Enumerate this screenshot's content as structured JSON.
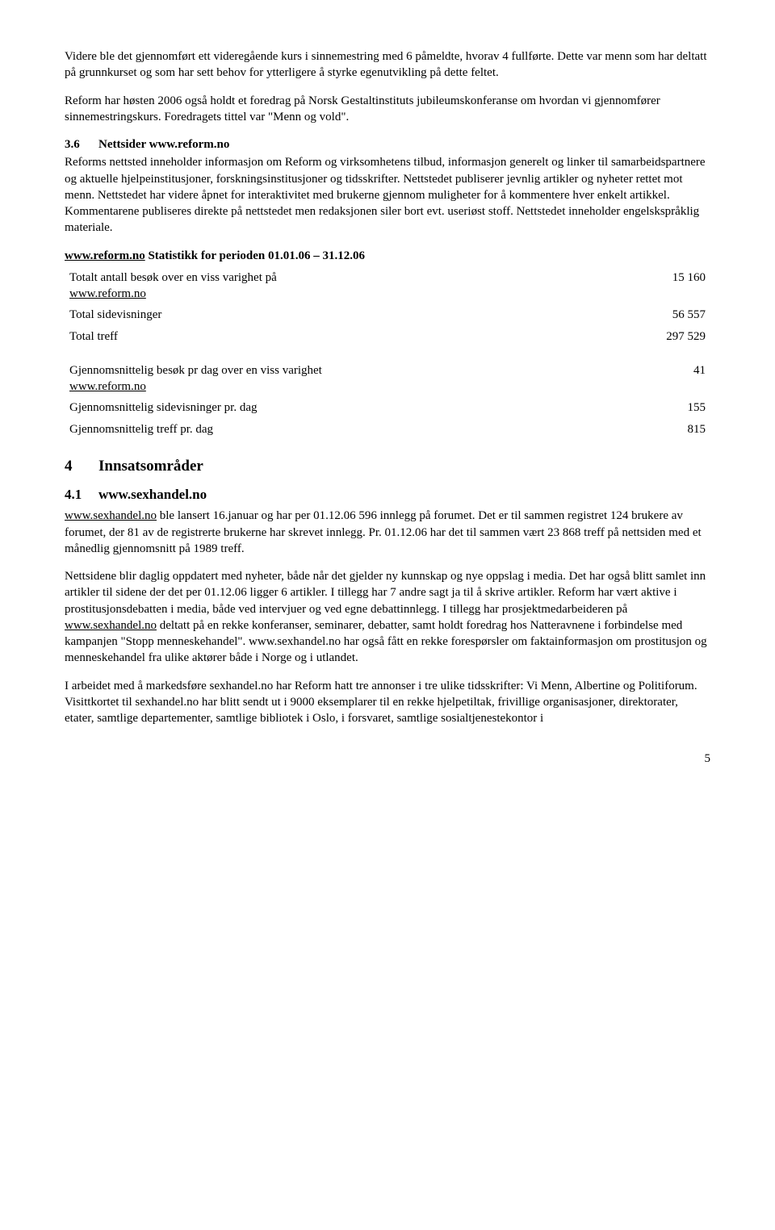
{
  "para1": "Videre ble det gjennomført ett videregående kurs i sinnemestring med 6 påmeldte, hvorav 4 fullførte. Dette var menn som har deltatt på grunnkurset og som har sett behov for ytterligere å styrke egenutvikling på dette feltet.",
  "para2": "Reform har høsten 2006 også holdt et foredrag på Norsk Gestaltinstituts jubileumskonferanse om hvordan vi gjennomfører sinnemestringskurs. Foredragets tittel var \"Menn og vold\".",
  "sec36": {
    "num": "3.6",
    "title": "Nettsider www.reform.no"
  },
  "para3": "Reforms nettsted inneholder informasjon om Reform og virksomhetens tilbud, informasjon generelt og linker til samarbeidspartnere og aktuelle hjelpeinstitusjoner, forskningsinstitusjoner og tidsskrifter. Nettstedet publiserer jevnlig artikler og nyheter rettet mot menn. Nettstedet har videre åpnet for interaktivitet med brukerne gjennom muligheter for å kommentere hver enkelt artikkel. Kommentarene publiseres direkte på nettstedet men redaksjonen siler bort evt. useriøst stoff. Nettstedet inneholder engelskspråklig materiale.",
  "stats_heading": {
    "link": "www.reform.no",
    "rest": " Statistikk for perioden 01.01.06 – 31.12.06"
  },
  "table1": {
    "rows": [
      {
        "label_pre": "Totalt antall besøk over en viss varighet på ",
        "link": "www.reform.no",
        "value": "15 160"
      },
      {
        "label_pre": "Total sidevisninger",
        "link": "",
        "value": "56 557"
      },
      {
        "label_pre": "Total treff",
        "link": "",
        "value": "297 529"
      }
    ]
  },
  "table2": {
    "rows": [
      {
        "label_pre": "Gjennomsnittelig besøk pr dag over en viss varighet ",
        "link": "www.reform.no",
        "value": "41"
      },
      {
        "label_pre": "Gjennomsnittelig sidevisninger pr. dag",
        "link": "",
        "value": "155"
      },
      {
        "label_pre": "Gjennomsnittelig treff pr. dag",
        "link": "",
        "value": "815"
      }
    ]
  },
  "sec4": {
    "num": "4",
    "title": "Innsatsområder"
  },
  "sec41": {
    "num": "4.1",
    "title": "www.sexhandel.no"
  },
  "para4_pre": "",
  "para4_link": "www.sexhandel.no",
  "para4_rest": " ble lansert 16.januar og har per 01.12.06 596 innlegg på forumet. Det er til sammen registret 124 brukere av forumet, der 81 av de registrerte brukerne har skrevet innlegg. Pr. 01.12.06 har det til sammen vært 23 868 treff på nettsiden med et månedlig gjennomsnitt på 1989 treff.",
  "para5_a": "Nettsidene blir daglig oppdatert med nyheter, både når det gjelder ny kunnskap og nye oppslag i media. Det har også blitt samlet inn artikler til sidene der det per 01.12.06 ligger 6 artikler. I tillegg har 7 andre sagt ja til å skrive artikler. Reform har vært aktive i prostitusjonsdebatten i media, både ved intervjuer og ved egne debattinnlegg. I tillegg har prosjektmedarbeideren på ",
  "para5_link": "www.sexhandel.no",
  "para5_b": " deltatt på en rekke konferanser, seminarer, debatter, samt holdt foredrag hos Natteravnene i forbindelse med kampanjen \"Stopp menneskehandel\". www.sexhandel.no har også fått en rekke forespørsler om faktainformasjon om prostitusjon og menneskehandel fra ulike aktører både i Norge og i utlandet.",
  "para6": "I arbeidet med å markedsføre sexhandel.no har Reform hatt tre annonser i tre ulike tidsskrifter: Vi Menn, Albertine og Politiforum. Visittkortet til sexhandel.no har blitt sendt ut i 9000 eksemplarer til en rekke hjelpetiltak, frivillige organisasjoner, direktorater, etater, samtlige departementer, samtlige bibliotek i Oslo, i forsvaret, samtlige sosialtjenestekontor i",
  "pagenum": "5"
}
